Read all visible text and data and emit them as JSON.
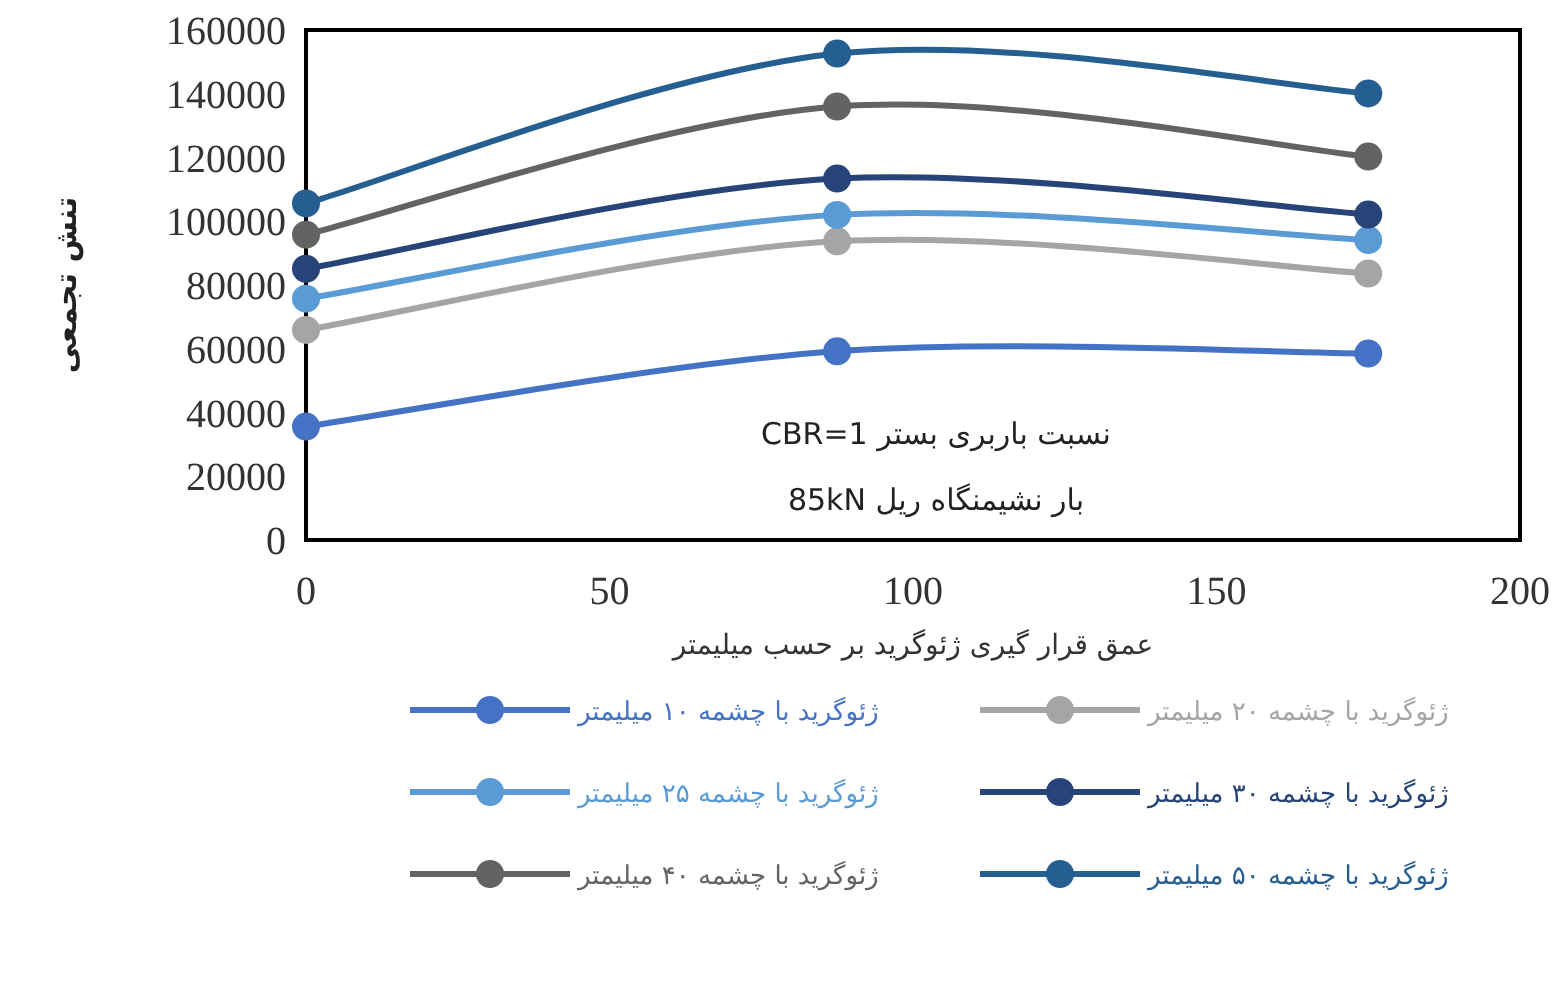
{
  "chart_data": {
    "type": "line",
    "xlabel": "عمق قرار گیری ژئوگرید بر حسب میلیمتر",
    "ylabel": "تنش تجمعی",
    "annotations": [
      "نسبت باربری بستر CBR=1",
      "بار نشیمنگاه ریل 85kN"
    ],
    "x": [
      0,
      87.5,
      175
    ],
    "xlim": [
      0,
      200
    ],
    "xticks": [
      0,
      50,
      100,
      150,
      200
    ],
    "ylim": [
      0,
      160000
    ],
    "yticks": [
      0,
      20000,
      40000,
      60000,
      80000,
      100000,
      120000,
      140000,
      160000
    ],
    "grid": false,
    "legend": "bottom",
    "marker": "circle",
    "line_style": "solid",
    "series": [
      {
        "name": "ژئوگرید با چشمه ۱۰ میلیمتر",
        "color": "#4472c4",
        "values": [
          35600,
          59200,
          58500
        ]
      },
      {
        "name": "ژئوگرید با چشمه ۲۰ میلیمتر",
        "color": "#a5a5a5",
        "values": [
          65900,
          93700,
          83600
        ]
      },
      {
        "name": "ژئوگرید با چشمه ۲۵ میلیمتر",
        "color": "#5b9bd5",
        "values": [
          75700,
          102000,
          94100
        ]
      },
      {
        "name": "ژئوگرید با چشمه ۳۰ میلیمتر",
        "color": "#264478",
        "values": [
          85100,
          113400,
          102100
        ]
      },
      {
        "name": "ژئوگرید با چشمه ۴۰ میلیمتر",
        "color": "#636363",
        "values": [
          95800,
          136000,
          120300
        ]
      },
      {
        "name": "ژئوگرید با چشمه ۵۰ میلیمتر",
        "color": "#255e91",
        "values": [
          105600,
          152600,
          140100
        ]
      }
    ]
  }
}
